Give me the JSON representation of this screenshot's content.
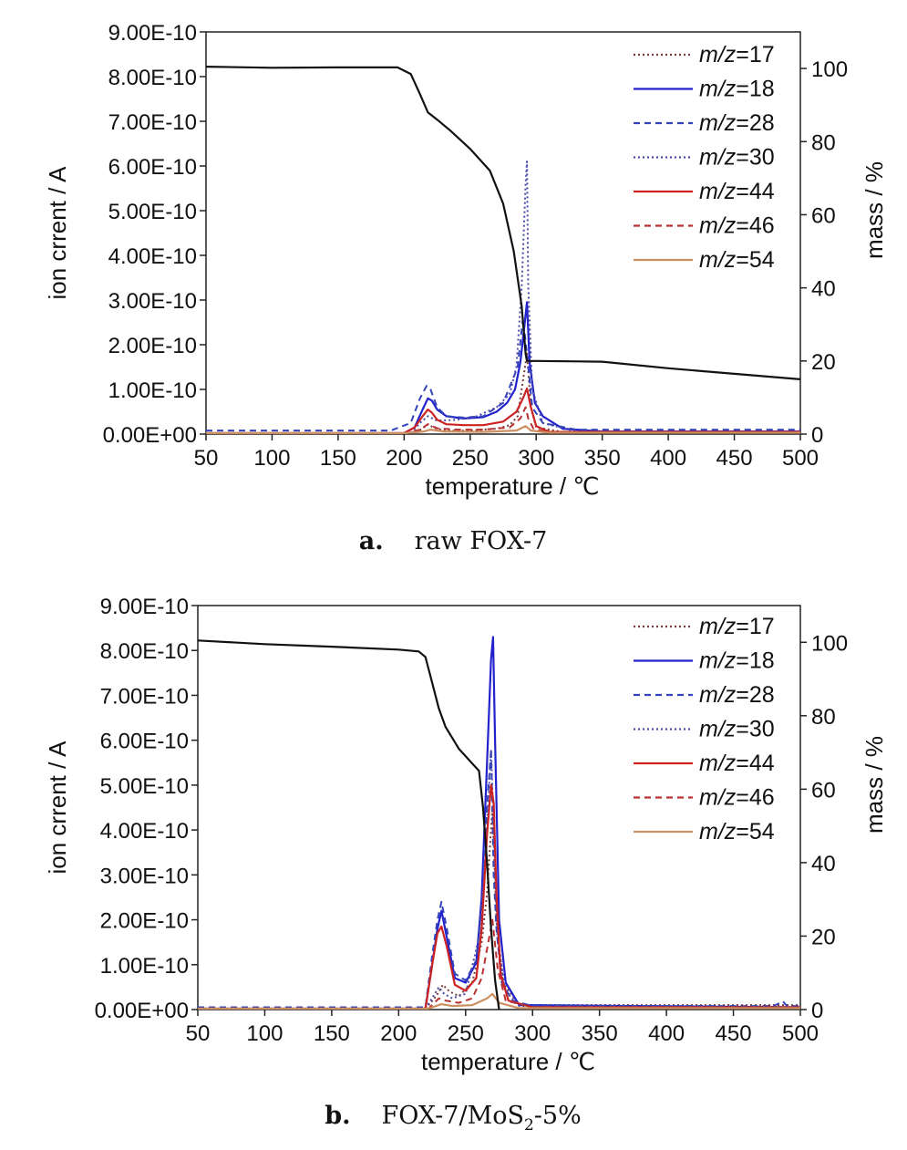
{
  "chart_data": [
    {
      "type": "line",
      "caption_letter": "a.",
      "caption_text": "raw FOX-7",
      "xlabel": "temperature / ℃",
      "ylabel": "ion crrent / A",
      "y2label": "mass / %",
      "xlim": [
        50,
        500
      ],
      "ylim": [
        0,
        9e-10
      ],
      "y2lim": [
        0,
        110
      ],
      "xticks": [
        "50",
        "100",
        "150",
        "200",
        "250",
        "300",
        "350",
        "400",
        "450",
        "500"
      ],
      "yticks": [
        "0.00E+00",
        "1.00E-10",
        "2.00E-10",
        "3.00E-10",
        "4.00E-10",
        "5.00E-10",
        "6.00E-10",
        "7.00E-10",
        "8.00E-10",
        "9.00E-10"
      ],
      "y2ticks": [
        "0",
        "20",
        "40",
        "60",
        "80",
        "100"
      ],
      "legend": [
        {
          "prefix": "m/z",
          "value": "=17"
        },
        {
          "prefix": "m/z",
          "value": "=18"
        },
        {
          "prefix": "m/z",
          "value": "=28"
        },
        {
          "prefix": "m/z",
          "value": "=30"
        },
        {
          "prefix": "m/z",
          "value": "=44"
        },
        {
          "prefix": "m/z",
          "value": "=46"
        },
        {
          "prefix": "m/z",
          "value": "=54"
        }
      ],
      "mass_curve": {
        "x": [
          50,
          100,
          150,
          195,
          205,
          212,
          218,
          225,
          235,
          250,
          265,
          275,
          283,
          289,
          292,
          293,
          300,
          350,
          400,
          450,
          500
        ],
        "y": [
          100.5,
          100.2,
          100.3,
          100.3,
          98.5,
          93,
          88,
          86,
          83,
          78,
          72,
          63,
          50,
          35,
          22,
          20,
          20,
          19.8,
          18,
          16.5,
          15
        ]
      },
      "series": [
        {
          "name": "m/z=17",
          "color": "#7a3b3b",
          "dash": "2,3",
          "x": [
            50,
            200,
            210,
            215,
            218,
            222,
            230,
            250,
            270,
            280,
            286,
            290,
            293,
            296,
            300,
            320,
            500
          ],
          "y": [
            1e-12,
            1e-12,
            5e-12,
            1.5e-11,
            2.2e-11,
            1.5e-11,
            8e-12,
            8e-12,
            1.2e-11,
            2e-11,
            4e-11,
            1.2e-10,
            1.8e-10,
            6e-11,
            1.5e-11,
            5e-12,
            5e-12
          ]
        },
        {
          "name": "m/z=18",
          "color": "#2222cc",
          "dash": "",
          "x": [
            50,
            200,
            208,
            214,
            218,
            221,
            225,
            232,
            245,
            260,
            270,
            278,
            284,
            288,
            291,
            293,
            295,
            299,
            305,
            320,
            350,
            500
          ],
          "y": [
            2e-12,
            2e-12,
            1.5e-11,
            5.5e-11,
            8e-11,
            7.5e-11,
            5.5e-11,
            4e-11,
            3.5e-11,
            3.8e-11,
            5e-11,
            7e-11,
            1e-10,
            1.6e-10,
            2.4e-10,
            2.95e-10,
            1.6e-10,
            7e-11,
            4e-11,
            1.2e-11,
            6e-12,
            6e-12
          ]
        },
        {
          "name": "m/z=28",
          "color": "#3344bb",
          "dash": "7,5",
          "x": [
            50,
            190,
            205,
            212,
            217,
            220,
            225,
            232,
            245,
            260,
            275,
            286,
            290,
            293,
            297,
            305,
            330,
            500
          ],
          "y": [
            8e-12,
            8e-12,
            2.5e-11,
            8e-11,
            1.08e-10,
            1e-10,
            6e-11,
            4e-11,
            3.7e-11,
            4e-11,
            7e-11,
            1.5e-10,
            2.6e-10,
            1.8e-10,
            6e-11,
            2.5e-11,
            1e-11,
            1e-11
          ]
        },
        {
          "name": "m/z=30",
          "color": "#4a4aa8",
          "dash": "2,3",
          "x": [
            50,
            205,
            212,
            218,
            225,
            240,
            255,
            270,
            280,
            285,
            289,
            292,
            293,
            294,
            297,
            305,
            330,
            500
          ],
          "y": [
            2e-12,
            2e-12,
            2.5e-11,
            4e-11,
            3e-11,
            3.2e-11,
            4e-11,
            6e-11,
            9e-11,
            1.5e-10,
            3.3e-10,
            5.6e-10,
            6.1e-10,
            3.3e-10,
            1e-10,
            2.5e-11,
            6e-12,
            6e-12
          ]
        },
        {
          "name": "m/z=44",
          "color": "#cc2222",
          "dash": "",
          "x": [
            50,
            200,
            208,
            214,
            218,
            221,
            225,
            232,
            245,
            260,
            275,
            285,
            290,
            293,
            296,
            300,
            310,
            500
          ],
          "y": [
            2e-12,
            2e-12,
            1.5e-11,
            4e-11,
            5.5e-11,
            4.8e-11,
            3.2e-11,
            2.2e-11,
            2e-11,
            2e-11,
            2.8e-11,
            5e-11,
            8e-11,
            1.02e-10,
            6e-11,
            1.8e-11,
            5e-12,
            5e-12
          ]
        },
        {
          "name": "m/z=46",
          "color": "#b83030",
          "dash": "7,5",
          "x": [
            50,
            200,
            212,
            218,
            225,
            240,
            260,
            280,
            288,
            292,
            294,
            298,
            310,
            500
          ],
          "y": [
            1e-12,
            1e-12,
            1e-11,
            2.2e-11,
            1.3e-11,
            1e-11,
            1e-11,
            1.5e-11,
            3.5e-11,
            6e-11,
            3.5e-11,
            1.2e-11,
            3e-12,
            3e-12
          ]
        },
        {
          "name": "m/z=54",
          "color": "#cc9060",
          "dash": "",
          "x": [
            50,
            200,
            215,
            220,
            230,
            260,
            285,
            292,
            296,
            310,
            500
          ],
          "y": [
            2e-12,
            2e-12,
            6e-12,
            1e-11,
            6e-12,
            5e-12,
            8e-12,
            1.8e-11,
            8e-12,
            3e-12,
            3e-12
          ]
        }
      ]
    },
    {
      "type": "line",
      "caption_letter": "b.",
      "caption_text": "FOX-7/MoS",
      "caption_sub": "2",
      "caption_tail": "-5%",
      "xlabel": "temperature / ℃",
      "ylabel": "ion crrent / A",
      "y2label": "mass / %",
      "xlim": [
        50,
        500
      ],
      "ylim": [
        0,
        9e-10
      ],
      "y2lim": [
        0,
        110
      ],
      "xticks": [
        "50",
        "100",
        "150",
        "200",
        "250",
        "300",
        "350",
        "400",
        "450",
        "500"
      ],
      "yticks": [
        "0.00E+00",
        "1.00E-10",
        "2.00E-10",
        "3.00E-10",
        "4.00E-10",
        "5.00E-10",
        "6.00E-10",
        "7.00E-10",
        "8.00E-10",
        "9.00E-10"
      ],
      "y2ticks": [
        "0",
        "20",
        "40",
        "60",
        "80",
        "100"
      ],
      "legend": [
        {
          "prefix": "m/z",
          "value": "=17"
        },
        {
          "prefix": "m/z",
          "value": "=18"
        },
        {
          "prefix": "m/z",
          "value": "=28"
        },
        {
          "prefix": "m/z",
          "value": "=30"
        },
        {
          "prefix": "m/z",
          "value": "=44"
        },
        {
          "prefix": "m/z",
          "value": "=46"
        },
        {
          "prefix": "m/z",
          "value": "=54"
        }
      ],
      "mass_curve": {
        "x": [
          50,
          100,
          150,
          200,
          215,
          220,
          225,
          230,
          235,
          245,
          255,
          260,
          263,
          266,
          269,
          272,
          275
        ],
        "y": [
          100.5,
          99.5,
          98.8,
          98,
          97.5,
          96,
          89,
          82,
          77,
          71,
          67,
          65,
          55,
          40,
          22,
          8,
          0
        ]
      },
      "series": [
        {
          "name": "m/z=17",
          "color": "#7a3b3b",
          "dash": "2,3",
          "x": [
            50,
            220,
            228,
            233,
            238,
            245,
            255,
            262,
            266,
            270,
            273,
            278,
            290,
            500
          ],
          "y": [
            1e-12,
            1e-12,
            3e-11,
            5.5e-11,
            4e-11,
            3e-11,
            6e-11,
            1.5e-10,
            2.6e-10,
            4.5e-10,
            2e-10,
            6e-11,
            1e-11,
            1e-11
          ]
        },
        {
          "name": "m/z=18",
          "color": "#2222cc",
          "dash": "",
          "x": [
            50,
            220,
            225,
            229,
            232,
            236,
            242,
            250,
            258,
            262,
            266,
            269,
            270.5,
            272,
            275,
            280,
            290,
            500
          ],
          "y": [
            2e-12,
            2e-12,
            1e-10,
            1.8e-10,
            2.2e-10,
            1.6e-10,
            7e-11,
            6e-11,
            1.05e-10,
            2.5e-10,
            5.5e-10,
            7.8e-10,
            8.3e-10,
            6e-10,
            2e-10,
            6e-11,
            1e-11,
            5e-12
          ]
        },
        {
          "name": "m/z=28",
          "color": "#3344bb",
          "dash": "7,5",
          "x": [
            50,
            220,
            225,
            229,
            232,
            236,
            242,
            250,
            258,
            262,
            266,
            269,
            271,
            273,
            277,
            285,
            300,
            480,
            487,
            490,
            500
          ],
          "y": [
            5e-12,
            5e-12,
            1.2e-10,
            2e-10,
            2.4e-10,
            1.8e-10,
            8e-11,
            6.5e-11,
            1.1e-10,
            2.3e-10,
            4.5e-10,
            5.8e-10,
            3e-10,
            1.8e-10,
            6e-11,
            2e-11,
            8e-12,
            8e-12,
            1.8e-11,
            8e-12,
            8e-12
          ]
        },
        {
          "name": "m/z=30",
          "color": "#4a4aa8",
          "dash": "2,3",
          "x": [
            50,
            220,
            226,
            230,
            234,
            240,
            250,
            260,
            265,
            269,
            271,
            274,
            280,
            290,
            500
          ],
          "y": [
            2e-12,
            2e-12,
            3e-11,
            5e-11,
            3.5e-11,
            2.5e-11,
            3.5e-11,
            1.6e-10,
            3.5e-10,
            5.8e-10,
            4e-10,
            1.5e-10,
            4e-11,
            8e-12,
            5e-12
          ]
        },
        {
          "name": "m/z=44",
          "color": "#cc2222",
          "dash": "",
          "x": [
            50,
            220,
            225,
            229,
            232,
            236,
            242,
            250,
            258,
            262,
            266,
            269,
            271,
            273,
            276,
            282,
            300,
            500
          ],
          "y": [
            2e-12,
            2e-12,
            1e-10,
            1.7e-10,
            1.85e-10,
            1.4e-10,
            5.5e-11,
            4.2e-11,
            7e-11,
            1.8e-10,
            3.9e-10,
            5e-10,
            4.6e-10,
            2.6e-10,
            8e-11,
            2e-11,
            5e-12,
            5e-12
          ]
        },
        {
          "name": "m/z=46",
          "color": "#b83030",
          "dash": "7,5",
          "x": [
            50,
            222,
            230,
            235,
            245,
            255,
            262,
            267,
            270,
            274,
            280,
            300,
            500
          ],
          "y": [
            1e-12,
            1e-12,
            2.5e-11,
            2e-11,
            1.5e-11,
            2.5e-11,
            7e-11,
            1.5e-10,
            2e-10,
            9e-11,
            2e-11,
            5e-12,
            5e-12
          ]
        },
        {
          "name": "m/z=54",
          "color": "#cc9060",
          "dash": "",
          "x": [
            50,
            222,
            232,
            240,
            255,
            266,
            270,
            275,
            290,
            500
          ],
          "y": [
            2e-12,
            2e-12,
            1.2e-11,
            8e-12,
            1e-11,
            2.5e-11,
            3.5e-11,
            1.5e-11,
            3e-12,
            3e-12
          ]
        }
      ]
    }
  ]
}
